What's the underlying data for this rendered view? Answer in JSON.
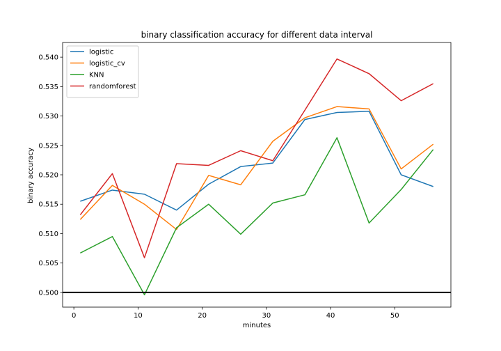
{
  "chart_data": {
    "type": "line",
    "title": "binary classification accuracy for different data interval",
    "xlabel": "minutes",
    "ylabel": "binary accuracy",
    "x": [
      1,
      6,
      11,
      16,
      21,
      26,
      31,
      36,
      41,
      46,
      51,
      56
    ],
    "xlim": [
      -1.75,
      58.75
    ],
    "ylim": [
      0.4975,
      0.5425
    ],
    "x_ticks": [
      0,
      10,
      20,
      30,
      40,
      50
    ],
    "x_tick_labels": [
      "0",
      "10",
      "20",
      "30",
      "40",
      "50"
    ],
    "y_ticks": [
      0.5,
      0.505,
      0.51,
      0.515,
      0.52,
      0.525,
      0.53,
      0.535,
      0.54
    ],
    "y_tick_labels": [
      "0.500",
      "0.505",
      "0.510",
      "0.515",
      "0.520",
      "0.525",
      "0.530",
      "0.535",
      "0.540"
    ],
    "grid": false,
    "legend_position": "top-left",
    "baseline": {
      "y": 0.5,
      "color": "#000000"
    },
    "series": [
      {
        "name": "logistic",
        "color": "#1f77b4",
        "values": [
          0.5155,
          0.5174,
          0.5167,
          0.514,
          0.5184,
          0.5214,
          0.522,
          0.5294,
          0.5306,
          0.5308,
          0.52,
          0.518
        ]
      },
      {
        "name": "logistic_cv",
        "color": "#ff7f0e",
        "values": [
          0.5124,
          0.5182,
          0.515,
          0.5107,
          0.5199,
          0.5183,
          0.5257,
          0.5297,
          0.5316,
          0.5312,
          0.521,
          0.5252
        ]
      },
      {
        "name": "KNN",
        "color": "#2ca02c",
        "values": [
          0.5067,
          0.5095,
          0.4996,
          0.511,
          0.515,
          0.5099,
          0.5152,
          0.5166,
          0.5263,
          0.5118,
          0.5175,
          0.5243
        ]
      },
      {
        "name": "randomforest",
        "color": "#d62728",
        "values": [
          0.5132,
          0.5202,
          0.5059,
          0.5219,
          0.5216,
          0.5241,
          0.5224,
          0.531,
          0.5397,
          0.5372,
          0.5326,
          0.5355
        ]
      }
    ]
  }
}
